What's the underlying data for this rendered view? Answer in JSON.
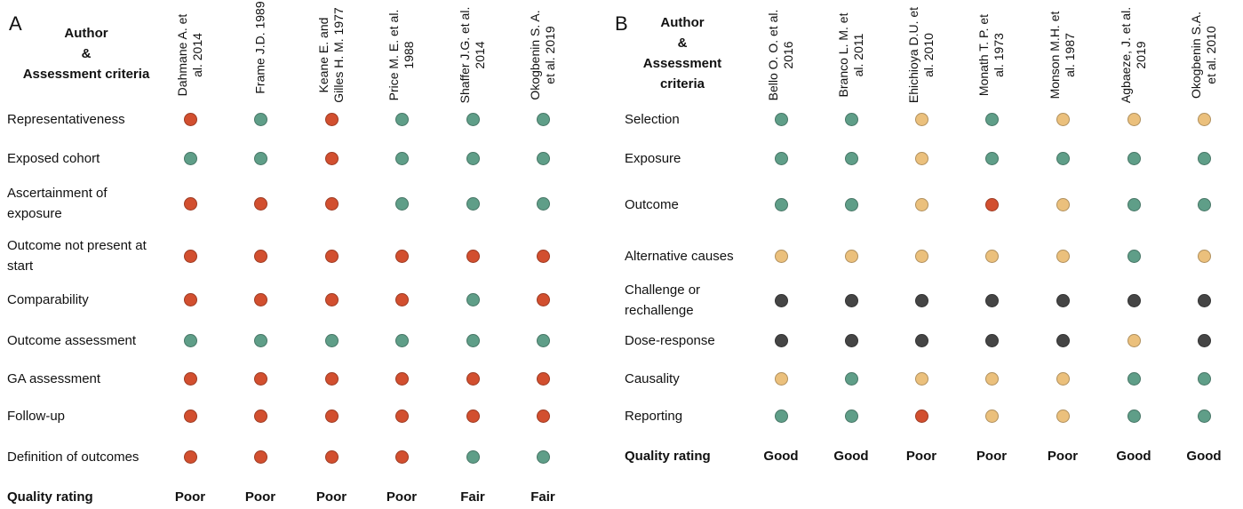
{
  "panels": [
    {
      "label": "A",
      "header": [
        "Author",
        "&",
        "Assessment criteria"
      ],
      "authors": [
        "Dahmane A. et al. 2014",
        "Frame J.D. 1989",
        "Keane E. and Gilles H. M. 1977",
        "Price M. E. et al. 1988",
        "Shaffer J.G. et al. 2014",
        "Okogbenin S. A. et al. 2019"
      ],
      "rows": [
        {
          "criterion": "Representativeness",
          "cells": [
            "#d24f2f",
            "#5f9e88",
            "#d24f2f",
            "#5f9e88",
            "#5f9e88",
            "#5f9e88"
          ]
        },
        {
          "criterion": "Exposed cohort",
          "cells": [
            "#5f9e88",
            "#5f9e88",
            "#d24f2f",
            "#5f9e88",
            "#5f9e88",
            "#5f9e88"
          ]
        },
        {
          "criterion": "Ascertainment of exposure",
          "cells": [
            "#d24f2f",
            "#d24f2f",
            "#d24f2f",
            "#5f9e88",
            "#5f9e88",
            "#5f9e88"
          ]
        },
        {
          "criterion": "Outcome not present at start",
          "cells": [
            "#d24f2f",
            "#d24f2f",
            "#d24f2f",
            "#d24f2f",
            "#d24f2f",
            "#d24f2f"
          ]
        },
        {
          "criterion": "Comparability",
          "cells": [
            "#d24f2f",
            "#d24f2f",
            "#d24f2f",
            "#d24f2f",
            "#5f9e88",
            "#d24f2f"
          ]
        },
        {
          "criterion": "Outcome assessment",
          "cells": [
            "#5f9e88",
            "#5f9e88",
            "#5f9e88",
            "#5f9e88",
            "#5f9e88",
            "#5f9e88"
          ]
        },
        {
          "criterion": "GA assessment",
          "cells": [
            "#d24f2f",
            "#d24f2f",
            "#d24f2f",
            "#d24f2f",
            "#d24f2f",
            "#d24f2f"
          ]
        },
        {
          "criterion": "Follow-up",
          "cells": [
            "#d24f2f",
            "#d24f2f",
            "#d24f2f",
            "#d24f2f",
            "#d24f2f",
            "#d24f2f"
          ]
        },
        {
          "criterion": "Definition of outcomes",
          "cells": [
            "#d24f2f",
            "#d24f2f",
            "#d24f2f",
            "#d24f2f",
            "#5f9e88",
            "#5f9e88"
          ]
        }
      ],
      "quality_label": "Quality rating",
      "quality": [
        "Poor",
        "Poor",
        "Poor",
        "Poor",
        "Fair",
        "Fair"
      ]
    },
    {
      "label": "B",
      "header": [
        "Author",
        "&",
        "Assessment",
        "criteria"
      ],
      "authors": [
        "Bello O. O. et al. 2016",
        "Branco L. M. et al. 2011",
        "Ehichioya D.U. et al. 2010",
        "Monath T. P. et al. 1973",
        "Monson M.H. et al. 1987",
        "Agbaeze, J. et al. 2019",
        "Okogbenin S.A. et al. 2010"
      ],
      "rows": [
        {
          "criterion": "Selection",
          "cells": [
            "#5f9e88",
            "#5f9e88",
            "#ebc07c",
            "#5f9e88",
            "#ebc07c",
            "#ebc07c",
            "#ebc07c"
          ]
        },
        {
          "criterion": "Exposure",
          "cells": [
            "#5f9e88",
            "#5f9e88",
            "#ebc07c",
            "#5f9e88",
            "#5f9e88",
            "#5f9e88",
            "#5f9e88"
          ]
        },
        {
          "criterion": "Outcome",
          "cells": [
            "#5f9e88",
            "#5f9e88",
            "#ebc07c",
            "#d24f2f",
            "#ebc07c",
            "#5f9e88",
            "#5f9e88"
          ]
        },
        {
          "criterion": "Alternative causes",
          "cells": [
            "#ebc07c",
            "#ebc07c",
            "#ebc07c",
            "#ebc07c",
            "#ebc07c",
            "#5f9e88",
            "#ebc07c"
          ]
        },
        {
          "criterion": "Challenge or rechallenge",
          "cells": [
            "#454545",
            "#454545",
            "#454545",
            "#454545",
            "#454545",
            "#454545",
            "#454545"
          ]
        },
        {
          "criterion": "Dose-response",
          "cells": [
            "#454545",
            "#454545",
            "#454545",
            "#454545",
            "#454545",
            "#ebc07c",
            "#454545"
          ]
        },
        {
          "criterion": "Causality",
          "cells": [
            "#ebc07c",
            "#5f9e88",
            "#ebc07c",
            "#ebc07c",
            "#ebc07c",
            "#5f9e88",
            "#5f9e88"
          ]
        },
        {
          "criterion": "Reporting",
          "cells": [
            "#5f9e88",
            "#5f9e88",
            "#d24f2f",
            "#ebc07c",
            "#ebc07c",
            "#5f9e88",
            "#5f9e88"
          ]
        }
      ],
      "quality_label": "Quality rating",
      "quality": [
        "Good",
        "Good",
        "Poor",
        "Poor",
        "Poor",
        "Good",
        "Good"
      ]
    }
  ]
}
